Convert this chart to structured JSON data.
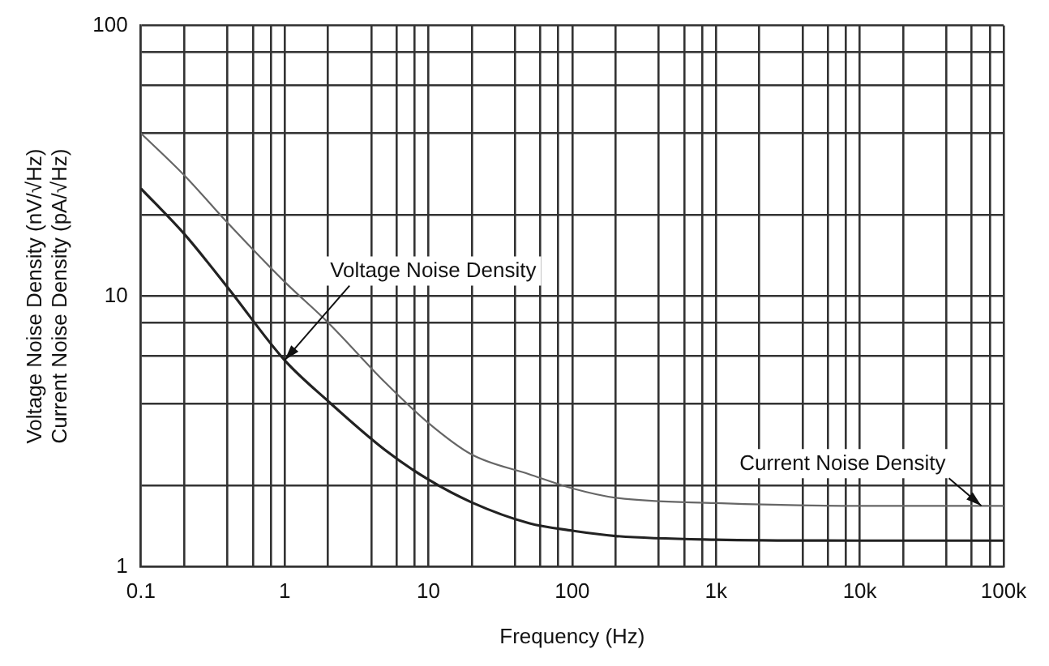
{
  "chart_data": {
    "type": "line",
    "xlabel": "Frequency (Hz)",
    "ylabel": "Voltage Noise Density (nV/√Hz)\nCurrent Noise Density (pA/√Hz)",
    "log": "xy",
    "grid": true,
    "legend": false,
    "marker": "none",
    "line_style": "solid",
    "x": [
      0.1,
      0.2,
      0.4,
      1,
      2,
      5,
      10,
      20,
      50,
      100,
      200,
      1000,
      10000,
      100000
    ],
    "series": [
      {
        "color": "#666666",
        "values": [
          40,
          28,
          18.7,
          11.3,
          8,
          4.8,
          3.4,
          2.6,
          2.2,
          1.95,
          1.8,
          1.72,
          1.68,
          1.68
        ]
      },
      {
        "color": "#222222",
        "values": [
          25,
          17,
          10.8,
          5.8,
          4.1,
          2.7,
          2.1,
          1.73,
          1.45,
          1.36,
          1.3,
          1.26,
          1.25,
          1.25
        ]
      }
    ],
    "xlim": [
      0.1,
      100000
    ],
    "ylim": [
      1,
      100
    ],
    "xticks": [
      0.1,
      {
        "value": 0.2,
        "label": null
      },
      {
        "value": 0.4,
        "label": null
      },
      {
        "value": 0.6,
        "label": null
      },
      {
        "value": 0.8,
        "label": null
      },
      1,
      {
        "value": 2,
        "label": null
      },
      {
        "value": 4,
        "label": null
      },
      {
        "value": 6,
        "label": null
      },
      {
        "value": 8,
        "label": null
      },
      10,
      {
        "value": 20,
        "label": null
      },
      {
        "value": 40,
        "label": null
      },
      {
        "value": 60,
        "label": null
      },
      {
        "value": 80,
        "label": null
      },
      100,
      {
        "value": 200,
        "label": null
      },
      {
        "value": 400,
        "label": null
      },
      {
        "value": 600,
        "label": null
      },
      {
        "value": 800,
        "label": null
      },
      {
        "value": 1000,
        "label": "1k"
      },
      {
        "value": 2000,
        "label": null
      },
      {
        "value": 4000,
        "label": null
      },
      {
        "value": 6000,
        "label": null
      },
      {
        "value": 8000,
        "label": null
      },
      {
        "value": 10000,
        "label": "10k"
      },
      {
        "value": 20000,
        "label": null
      },
      {
        "value": 40000,
        "label": null
      },
      {
        "value": 60000,
        "label": null
      },
      {
        "value": 80000,
        "label": null
      },
      {
        "value": 100000,
        "label": "100k"
      }
    ],
    "yticks": [
      1,
      {
        "value": 2,
        "label": null
      },
      {
        "value": 4,
        "label": null
      },
      {
        "value": 6,
        "label": null
      },
      {
        "value": 8,
        "label": null
      },
      10,
      {
        "value": 20,
        "label": null
      },
      {
        "value": 40,
        "label": null
      },
      {
        "value": 60,
        "label": null
      },
      {
        "value": 80,
        "label": null
      },
      100
    ],
    "annotations": [
      {
        "text": "Voltage Noise Density",
        "x": 1,
        "y": 5.8
      },
      {
        "text": "Current Noise Density",
        "x": 70000,
        "y": 1.68
      }
    ]
  }
}
